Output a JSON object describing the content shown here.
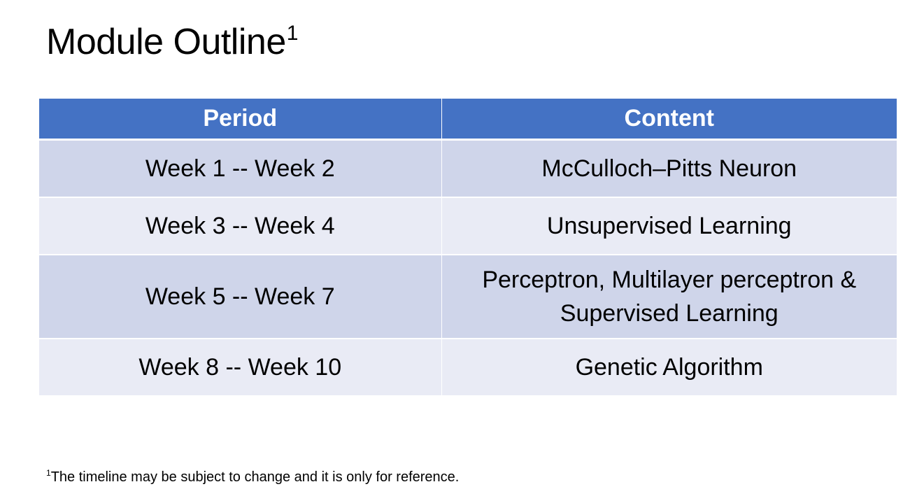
{
  "slide": {
    "title": "Module Outline",
    "title_footnote_marker": "1"
  },
  "table": {
    "headers": [
      "Period",
      "Content"
    ],
    "rows": [
      {
        "period": "Week 1 -- Week 2",
        "content": "McCulloch–Pitts Neuron"
      },
      {
        "period": "Week 3 -- Week 4",
        "content": "Unsupervised Learning"
      },
      {
        "period": "Week 5 -- Week 7",
        "content": "Perceptron, Multilayer perceptron & Supervised Learning"
      },
      {
        "period": "Week 8 -- Week 10",
        "content": "Genetic Algorithm"
      }
    ]
  },
  "footnote": {
    "marker": "1",
    "text": "The timeline may be subject to change and it is only for reference."
  },
  "colors": {
    "header_bg": "#4472c4",
    "row_odd_bg": "#cfd5ea",
    "row_even_bg": "#e9ebf5"
  }
}
